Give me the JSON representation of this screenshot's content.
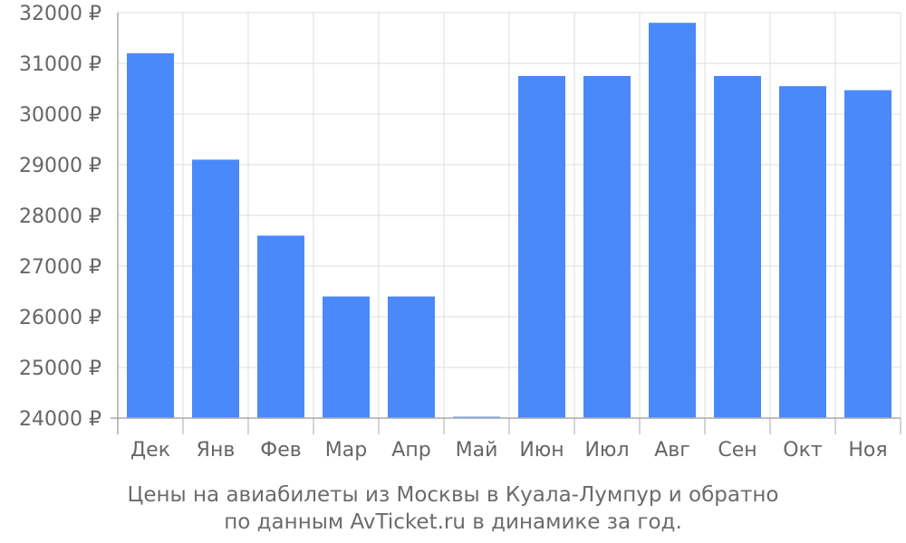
{
  "chart_data": {
    "type": "bar",
    "categories": [
      "Дек",
      "Янв",
      "Фев",
      "Мар",
      "Апр",
      "Май",
      "Июн",
      "Июл",
      "Авг",
      "Сен",
      "Окт",
      "Ноя"
    ],
    "values": [
      31200,
      29100,
      27600,
      26400,
      26400,
      24000,
      30750,
      30750,
      31800,
      30750,
      30550,
      30470
    ],
    "ylim": [
      24000,
      32000
    ],
    "yticks": [
      24000,
      25000,
      26000,
      27000,
      28000,
      29000,
      30000,
      31000,
      32000
    ],
    "ytick_suffix": " ₽",
    "grid": true,
    "bar_color": "#4a89fa",
    "grid_color": "#dddddd",
    "axis_color": "#aaaaaa"
  },
  "caption": {
    "line1": "Цены на авиабилеты из Москвы в Куала-Лумпур и обратно",
    "line2": "по данным AvTicket.ru в динамике за год."
  }
}
